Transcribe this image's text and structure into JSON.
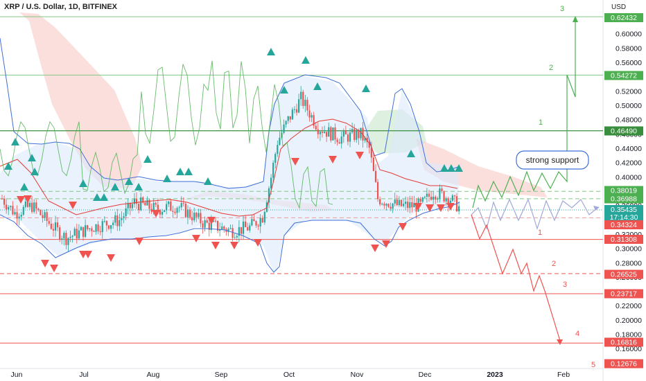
{
  "header": {
    "title": "XRP / U.S. Dollar, 1D, BITFINEX"
  },
  "chart_data": {
    "type": "candlestick",
    "title": "XRP / U.S. Dollar, 1D, BITFINEX",
    "currency": "USD",
    "y_range": [
      0.12,
      0.63
    ],
    "y_ticks": [
      "0.60000",
      "0.58000",
      "0.56000",
      "0.54000",
      "0.52000",
      "0.50000",
      "0.48000",
      "0.46000",
      "0.44000",
      "0.42000",
      "0.40000",
      "0.38000",
      "0.36000",
      "0.34000",
      "0.32000",
      "0.30000",
      "0.28000",
      "0.26000",
      "0.24000",
      "0.22000",
      "0.20000",
      "0.18000",
      "0.16000",
      "0.14000"
    ],
    "x_ticks": [
      "Jun",
      "Jul",
      "Aug",
      "Sep",
      "Oct",
      "Nov",
      "Dec",
      "2023",
      "Feb"
    ],
    "price_tags": [
      {
        "value": "0.62432",
        "color": "#4caf50"
      },
      {
        "value": "0.54272",
        "color": "#4caf50"
      },
      {
        "value": "0.46490",
        "color": "#388e3c"
      },
      {
        "value": "0.38019",
        "color": "#4caf50"
      },
      {
        "value": "0.36988",
        "color": "#4caf50"
      },
      {
        "value": "0.35435",
        "color": "#26a69a"
      },
      {
        "value": "17:14:30",
        "color": "#26a69a"
      },
      {
        "value": "0.34324",
        "color": "#ef5350"
      },
      {
        "value": "0.31308",
        "color": "#ef5350"
      },
      {
        "value": "0.26525",
        "color": "#ef5350"
      },
      {
        "value": "0.23717",
        "color": "#ef5350"
      },
      {
        "value": "0.16816",
        "color": "#ef5350"
      },
      {
        "value": "0.12676",
        "color": "#ef5350"
      }
    ],
    "levels": [
      {
        "price": 0.62432,
        "style": "solid",
        "color": "#81c784"
      },
      {
        "price": 0.54272,
        "style": "solid",
        "color": "#81c784"
      },
      {
        "price": 0.4649,
        "style": "solid",
        "color": "#388e3c"
      },
      {
        "price": 0.38019,
        "style": "dashed",
        "color": "#81c784"
      },
      {
        "price": 0.36988,
        "style": "dashed",
        "color": "#81c784"
      },
      {
        "price": 0.34324,
        "style": "dashed",
        "color": "#ef9a9a"
      },
      {
        "price": 0.31308,
        "style": "solid",
        "color": "#ef5350"
      },
      {
        "price": 0.26525,
        "style": "dashed",
        "color": "#ef5350"
      },
      {
        "price": 0.23717,
        "style": "solid",
        "color": "#ef5350"
      },
      {
        "price": 0.16816,
        "style": "solid",
        "color": "#ef5350"
      }
    ],
    "wave_labels_up": [
      "1",
      "2",
      "3"
    ],
    "wave_labels_down": [
      "1",
      "2",
      "3",
      "4",
      "5"
    ],
    "annotation": "strong support",
    "colors": {
      "up": "#26a69a",
      "down": "#ef5350",
      "bands": "#3f6fd8",
      "ma": "#e53935",
      "lagging": "#4caf50"
    }
  }
}
